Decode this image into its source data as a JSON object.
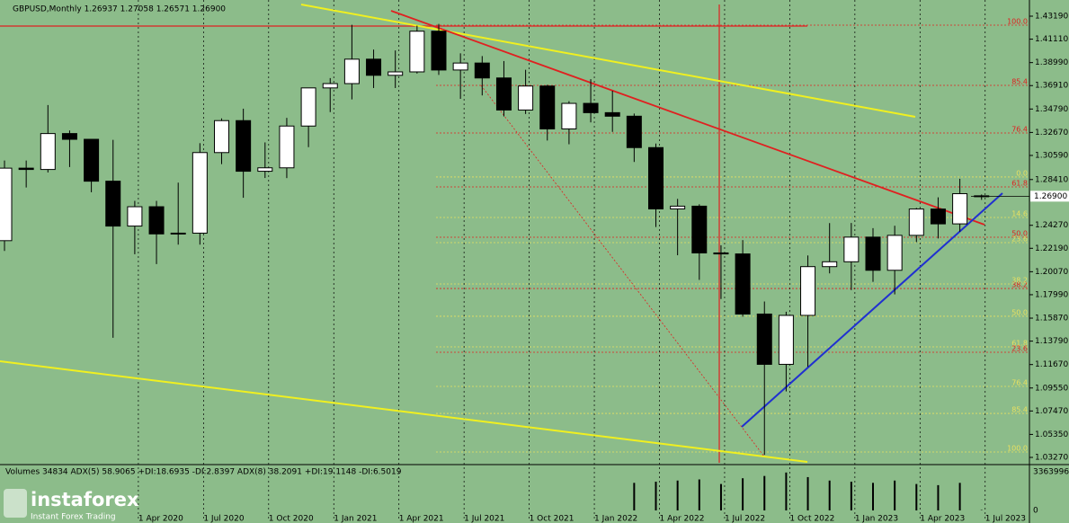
{
  "chart_data": {
    "type": "candlestick",
    "title": "GBPUSD,Monthly  1.26937 1.27058 1.26571 1.26900",
    "categories": [
      null,
      null,
      null,
      null,
      null,
      null,
      "1 Apr 2020",
      null,
      null,
      "1 Jul 2020",
      null,
      null,
      "1 Oct 2020",
      null,
      null,
      "1 Jan 2021",
      null,
      null,
      "1 Apr 2021",
      null,
      null,
      "1 Jul 2021",
      null,
      null,
      "1 Oct 2021",
      null,
      null,
      "1 Jan 2022",
      null,
      null,
      "1 Apr 2022",
      null,
      null,
      "1 Jul 2022",
      null,
      null,
      "1 Oct 2022",
      null,
      null,
      "1 Jan 2023",
      null,
      null,
      "1 Apr 2023",
      null,
      null,
      "1 Jul 2023"
    ],
    "open": [
      1.2288,
      1.2944,
      1.2932,
      1.3257,
      1.3205,
      1.2826,
      1.242,
      1.2595,
      1.2349,
      1.2356,
      1.3085,
      1.3374,
      1.2916,
      1.2947,
      1.3325,
      1.367,
      1.3709,
      1.393,
      1.3784,
      1.3815,
      1.4183,
      1.3832,
      1.3895,
      1.376,
      1.347,
      1.3687,
      1.3299,
      1.353,
      1.3446,
      1.3414,
      1.313,
      1.2575,
      1.26,
      1.2177,
      1.2168,
      1.1624,
      1.1169,
      1.1612,
      1.2053,
      1.2097,
      1.232,
      1.202,
      1.2336,
      1.2574,
      1.244,
      1.26937
    ],
    "high": [
      1.3013,
      1.3013,
      1.3515,
      1.3285,
      1.32,
      1.32,
      1.2648,
      1.2648,
      1.2813,
      1.317,
      1.3394,
      1.3482,
      1.3177,
      1.3399,
      1.3667,
      1.3759,
      1.4241,
      1.4017,
      1.4009,
      1.4233,
      1.4249,
      1.3983,
      1.3958,
      1.3913,
      1.3834,
      1.3698,
      1.355,
      1.3749,
      1.3644,
      1.3438,
      1.3167,
      1.2666,
      1.2617,
      1.2246,
      1.2293,
      1.1738,
      1.1645,
      1.2154,
      1.2447,
      1.2448,
      1.2401,
      1.2423,
      1.2584,
      1.268,
      1.2848,
      1.27058
    ],
    "low": [
      1.2195,
      1.2769,
      1.2905,
      1.2954,
      1.2726,
      1.1409,
      1.2165,
      1.2076,
      1.2252,
      1.2252,
      1.2981,
      1.2676,
      1.2855,
      1.2854,
      1.3134,
      1.3451,
      1.3566,
      1.3669,
      1.3669,
      1.38,
      1.3787,
      1.3571,
      1.3602,
      1.3412,
      1.3434,
      1.3194,
      1.316,
      1.3358,
      1.3272,
      1.3,
      1.2411,
      1.2156,
      1.1933,
      1.176,
      1.16,
      1.035,
      1.0924,
      1.1146,
      1.1992,
      1.1841,
      1.1915,
      1.1802,
      1.2275,
      1.2308,
      1.2369,
      1.26571
    ],
    "close": [
      1.2944,
      1.2932,
      1.3257,
      1.3205,
      1.2826,
      1.242,
      1.2595,
      1.2349,
      1.2356,
      1.3085,
      1.3374,
      1.2916,
      1.2947,
      1.3325,
      1.367,
      1.3709,
      1.393,
      1.3784,
      1.3815,
      1.4183,
      1.3832,
      1.3895,
      1.376,
      1.347,
      1.3687,
      1.3299,
      1.353,
      1.3446,
      1.3414,
      1.313,
      1.2575,
      1.26,
      1.2177,
      1.2168,
      1.1624,
      1.1169,
      1.1612,
      1.2053,
      1.2097,
      1.232,
      1.202,
      1.2336,
      1.2574,
      1.244,
      1.2713,
      1.269
    ],
    "up_color": "#ffffff",
    "down_color": "#000000",
    "ylim": [
      1.0327,
      1.4319
    ],
    "yticks": [
      {
        "value": 1.4319,
        "label": "1.43190"
      },
      {
        "value": 1.4111,
        "label": "1.41110"
      },
      {
        "value": 1.3899,
        "label": "1.38990"
      },
      {
        "value": 1.3691,
        "label": "1.36910"
      },
      {
        "value": 1.3479,
        "label": "1.34790"
      },
      {
        "value": 1.3267,
        "label": "1.32670"
      },
      {
        "value": 1.3059,
        "label": "1.30590"
      },
      {
        "value": 1.2841,
        "label": "1.28410"
      },
      {
        "value": 1.2427,
        "label": "1.24270"
      },
      {
        "value": 1.2219,
        "label": "1.22190"
      },
      {
        "value": 1.2007,
        "label": "1.20070"
      },
      {
        "value": 1.1799,
        "label": "1.17990"
      },
      {
        "value": 1.1587,
        "label": "1.15870"
      },
      {
        "value": 1.1379,
        "label": "1.13790"
      },
      {
        "value": 1.1167,
        "label": "1.11670"
      },
      {
        "value": 1.0955,
        "label": "1.09550"
      },
      {
        "value": 1.0747,
        "label": "1.07470"
      },
      {
        "value": 1.0535,
        "label": "1.05350"
      },
      {
        "value": 1.0327,
        "label": "1.03270"
      }
    ],
    "last_price": {
      "value": 1.269,
      "label": "1.26900"
    },
    "fib_levels": [
      {
        "label": "100.0",
        "value": 1.4238,
        "color": "#e02020"
      },
      {
        "label": "85.4",
        "value": 1.3693,
        "color": "#e02020"
      },
      {
        "label": "76.4",
        "value": 1.3262,
        "color": "#e02020"
      },
      {
        "label": "61.8",
        "value": 1.2774,
        "color": "#e02020"
      },
      {
        "label": "50.0",
        "value": 1.2319,
        "color": "#e02020"
      },
      {
        "label": "38.2",
        "value": 1.1855,
        "color": "#e02020"
      },
      {
        "label": "23.6",
        "value": 1.1278,
        "color": "#e02020"
      },
      {
        "label": "0.0",
        "value": 1.2864,
        "color": "#e8e060"
      },
      {
        "label": "14.6",
        "value": 1.2498,
        "color": "#e8e060"
      },
      {
        "label": "23.6",
        "value": 1.227,
        "color": "#e8e060"
      },
      {
        "label": "38.2",
        "value": 1.1896,
        "color": "#e8e060"
      },
      {
        "label": "50.0",
        "value": 1.1604,
        "color": "#e8e060"
      },
      {
        "label": "61.8",
        "value": 1.1327,
        "color": "#e8e060"
      },
      {
        "label": "76.4",
        "value": 1.0969,
        "color": "#e8e060"
      },
      {
        "label": "85.4",
        "value": 1.0725,
        "color": "#e8e060"
      },
      {
        "label": "100.0",
        "value": 1.0376,
        "color": "#e8e060"
      }
    ],
    "volume_title": "Volumes 34834 ADX(5) 58.9065 +DI:18.6935 -DI:2.8397 ADX(8) 38.2091 +DI:19.1148 -DI:6.5019",
    "volume": [
      null,
      null,
      null,
      null,
      null,
      null,
      null,
      null,
      null,
      null,
      null,
      null,
      null,
      null,
      null,
      null,
      null,
      null,
      null,
      null,
      null,
      null,
      null,
      null,
      null,
      null,
      null,
      null,
      null,
      2400000,
      2500000,
      2600000,
      2700000,
      2300000,
      2800000,
      3000000,
      3300000,
      2900000,
      2600000,
      2500000,
      2400000,
      2600000,
      2300000,
      2200000,
      2400000,
      34834
    ],
    "volume_lim": [
      0,
      3363996
    ],
    "volume_ticks": [
      {
        "value": 3363996,
        "label": "3363996"
      },
      0
    ],
    "watermark": {
      "brand": "instaforex",
      "tagline": "Instant Forex Trading"
    }
  }
}
